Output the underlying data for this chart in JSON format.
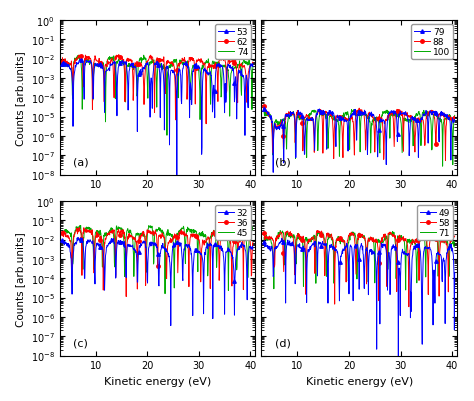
{
  "xlabel": "Kinetic energy (eV)",
  "ylabel": "Counts [arb.units]",
  "xlim": [
    3,
    41
  ],
  "ylim_log": [
    -8,
    0
  ],
  "xticks": [
    10,
    20,
    30,
    40
  ],
  "subplots": [
    {
      "label": "(a)",
      "legend_labels": [
        "53",
        "62",
        "74"
      ],
      "colors": [
        "#0000ff",
        "#ff0000",
        "#00aa00"
      ],
      "seeds": [
        1,
        2,
        3
      ],
      "envelope_amp": [
        0.006,
        0.01,
        0.008
      ],
      "envelope_decay": [
        0.018,
        0.012,
        0.015
      ],
      "osc_freq": [
        0.95,
        0.92,
        0.98
      ],
      "osc_phase": [
        0.0,
        0.5,
        1.0
      ],
      "dip_period": [
        2.1,
        2.0,
        2.05
      ],
      "dip_depth_exp": [
        6,
        4,
        4
      ],
      "blue_deep_dip": true,
      "panel_type": "a"
    },
    {
      "label": "(b)",
      "legend_labels": [
        "79",
        "88",
        "100"
      ],
      "colors": [
        "#0000ff",
        "#ff0000",
        "#00aa00"
      ],
      "seeds": [
        4,
        5,
        6
      ],
      "envelope_amp": [
        0.004,
        0.004,
        0.004
      ],
      "envelope_decay": [
        0.008,
        0.006,
        0.005
      ],
      "osc_freq": [
        0.9,
        0.88,
        0.92
      ],
      "osc_phase": [
        0.2,
        0.7,
        1.2
      ],
      "dip_period": [
        2.0,
        1.95,
        2.05
      ],
      "dip_depth_exp": [
        3,
        3,
        3
      ],
      "blue_deep_dip": false,
      "panel_type": "b"
    },
    {
      "label": "(c)",
      "legend_labels": [
        "32",
        "36",
        "45"
      ],
      "colors": [
        "#0000ff",
        "#ff0000",
        "#00aa00"
      ],
      "seeds": [
        7,
        8,
        9
      ],
      "envelope_amp": [
        0.008,
        0.025,
        0.035
      ],
      "envelope_decay": [
        0.025,
        0.018,
        0.012
      ],
      "osc_freq": [
        1.0,
        0.97,
        0.94
      ],
      "osc_phase": [
        0.0,
        0.3,
        0.6
      ],
      "dip_period": [
        2.1,
        2.05,
        2.0
      ],
      "dip_depth_exp": [
        6,
        5,
        4
      ],
      "blue_deep_dip": false,
      "panel_type": "c"
    },
    {
      "label": "(d)",
      "legend_labels": [
        "49",
        "58",
        "71"
      ],
      "colors": [
        "#0000ff",
        "#ff0000",
        "#00aa00"
      ],
      "seeds": [
        10,
        11,
        12
      ],
      "envelope_amp": [
        0.006,
        0.018,
        0.016
      ],
      "envelope_decay": [
        0.02,
        0.012,
        0.01
      ],
      "osc_freq": [
        0.96,
        0.93,
        0.9
      ],
      "osc_phase": [
        0.1,
        0.4,
        0.9
      ],
      "dip_period": [
        2.05,
        2.0,
        1.98
      ],
      "dip_depth_exp": [
        7,
        4,
        4
      ],
      "blue_deep_dip": true,
      "panel_type": "d"
    }
  ]
}
